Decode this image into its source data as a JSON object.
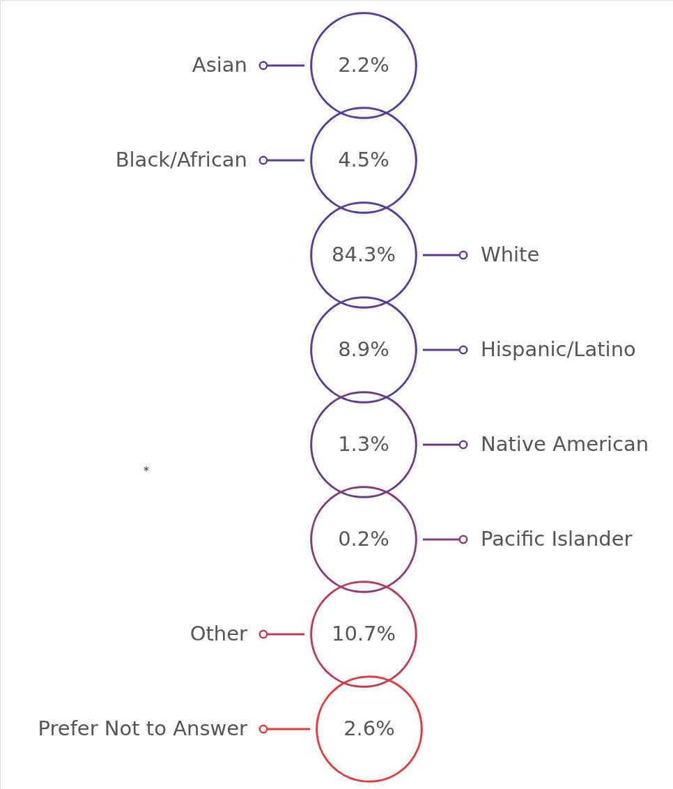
{
  "chart_data": {
    "type": "other",
    "categories": [
      "Asian",
      "Black/African",
      "White",
      "Hispanic/Latino",
      "Native American",
      "Pacific Islander",
      "Other",
      "Prefer Not to Answer"
    ],
    "values": [
      2.2,
      4.5,
      84.3,
      8.9,
      1.3,
      0.2,
      10.7,
      2.6
    ],
    "value_labels": [
      "2.2%",
      "4.5%",
      "84.3%",
      "8.9%",
      "1.3%",
      "0.2%",
      "10.7%",
      "2.6%"
    ],
    "colors": [
      "#5a3aa0",
      "#5a3aa0",
      "#5b3a9e",
      "#5e3a96",
      "#6b3a88",
      "#8a3a78",
      "#c03a55",
      "#e53935"
    ],
    "annotations": [
      "*"
    ]
  }
}
